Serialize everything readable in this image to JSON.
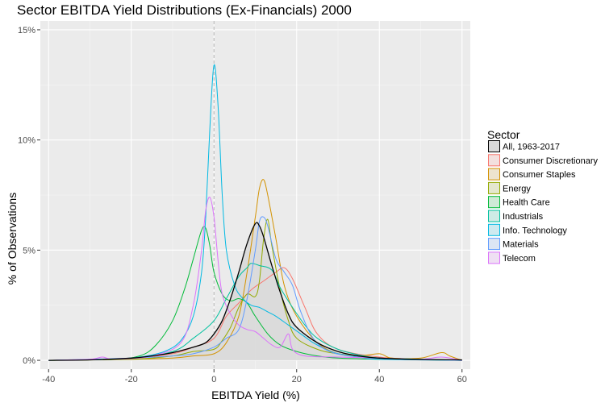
{
  "chart_data": {
    "type": "area",
    "title": "Sector EBITDA Yield Distributions (Ex-Financials) 2000",
    "xlabel": "EBITDA Yield (%)",
    "ylabel": "% of Observations",
    "xlim": [
      -42,
      62
    ],
    "ylim": [
      -0.4,
      15.4
    ],
    "x_ticks": [
      -40,
      -20,
      0,
      20,
      40,
      60
    ],
    "x_tick_labels": [
      "-40",
      "-20",
      "0",
      "20",
      "40",
      "60"
    ],
    "y_ticks": [
      0,
      5,
      10,
      15
    ],
    "y_tick_labels": [
      "0%",
      "5%",
      "10%",
      "15%"
    ],
    "reference_line": {
      "x": 0,
      "style": "dashed"
    },
    "grid": true,
    "panel_background": "#ebebeb",
    "legend": {
      "title": "Sector",
      "position": "right",
      "entries": [
        "All, 1963-2017",
        "Consumer Discretionary",
        "Consumer Staples",
        "Energy",
        "Health Care",
        "Industrials",
        "Info. Technology",
        "Materials",
        "Telecom"
      ]
    },
    "series": [
      {
        "name": "All, 1963-2017",
        "color": "#000000",
        "fill": "#d9d9d9",
        "points": [
          [
            -40,
            0
          ],
          [
            -30,
            0.02
          ],
          [
            -20,
            0.1
          ],
          [
            -15,
            0.2
          ],
          [
            -10,
            0.35
          ],
          [
            -5,
            0.6
          ],
          [
            -2,
            0.8
          ],
          [
            0,
            1.2
          ],
          [
            2,
            1.8
          ],
          [
            4,
            2.8
          ],
          [
            6,
            4.0
          ],
          [
            8,
            5.3
          ],
          [
            10,
            6.2
          ],
          [
            11,
            6.1
          ],
          [
            12,
            5.6
          ],
          [
            14,
            4.3
          ],
          [
            16,
            3.1
          ],
          [
            18,
            2.1
          ],
          [
            20,
            1.5
          ],
          [
            25,
            0.8
          ],
          [
            30,
            0.4
          ],
          [
            35,
            0.2
          ],
          [
            40,
            0.1
          ],
          [
            50,
            0.04
          ],
          [
            60,
            0.02
          ]
        ]
      },
      {
        "name": "Consumer Discretionary",
        "color": "#f8766d",
        "points": [
          [
            -40,
            0
          ],
          [
            -20,
            0.1
          ],
          [
            -10,
            0.3
          ],
          [
            -5,
            0.6
          ],
          [
            0,
            1.0
          ],
          [
            3,
            2.0
          ],
          [
            6,
            2.6
          ],
          [
            9,
            3.2
          ],
          [
            12,
            3.6
          ],
          [
            15,
            4.0
          ],
          [
            17,
            4.2
          ],
          [
            19,
            3.7
          ],
          [
            22,
            2.4
          ],
          [
            25,
            1.2
          ],
          [
            30,
            0.5
          ],
          [
            40,
            0.15
          ],
          [
            50,
            0.05
          ],
          [
            60,
            0
          ]
        ]
      },
      {
        "name": "Consumer Staples",
        "color": "#d39200",
        "points": [
          [
            -40,
            0
          ],
          [
            -20,
            0.05
          ],
          [
            -10,
            0.1
          ],
          [
            -5,
            0.2
          ],
          [
            0,
            0.3
          ],
          [
            3,
            0.8
          ],
          [
            6,
            2.0
          ],
          [
            8,
            4.0
          ],
          [
            10,
            6.5
          ],
          [
            11,
            7.8
          ],
          [
            12,
            8.2
          ],
          [
            13,
            7.5
          ],
          [
            15,
            5.5
          ],
          [
            17,
            3.4
          ],
          [
            20,
            2.0
          ],
          [
            25,
            0.8
          ],
          [
            30,
            0.3
          ],
          [
            35,
            0.2
          ],
          [
            40,
            0.3
          ],
          [
            43,
            0.1
          ],
          [
            50,
            0.1
          ],
          [
            55,
            0.35
          ],
          [
            57,
            0.2
          ],
          [
            60,
            0
          ]
        ]
      },
      {
        "name": "Energy",
        "color": "#93aa00",
        "points": [
          [
            -40,
            0
          ],
          [
            -20,
            0.05
          ],
          [
            -10,
            0.2
          ],
          [
            -5,
            0.4
          ],
          [
            0,
            0.5
          ],
          [
            2,
            0.9
          ],
          [
            4,
            1.5
          ],
          [
            6,
            2.4
          ],
          [
            8,
            3.0
          ],
          [
            10,
            2.9
          ],
          [
            11,
            3.6
          ],
          [
            12,
            5.5
          ],
          [
            13,
            6.4
          ],
          [
            14,
            5.2
          ],
          [
            16,
            3.2
          ],
          [
            18,
            1.8
          ],
          [
            20,
            1.0
          ],
          [
            25,
            0.5
          ],
          [
            30,
            0.3
          ],
          [
            40,
            0.1
          ],
          [
            50,
            0.05
          ],
          [
            60,
            0
          ]
        ]
      },
      {
        "name": "Health Care",
        "color": "#00ba38",
        "points": [
          [
            -40,
            0
          ],
          [
            -25,
            0.05
          ],
          [
            -18,
            0.2
          ],
          [
            -14,
            0.7
          ],
          [
            -10,
            1.8
          ],
          [
            -7,
            3.3
          ],
          [
            -5,
            4.6
          ],
          [
            -3,
            5.9
          ],
          [
            -2,
            6.0
          ],
          [
            -1,
            5.2
          ],
          [
            0,
            4.0
          ],
          [
            2,
            3.0
          ],
          [
            4,
            2.7
          ],
          [
            6,
            2.8
          ],
          [
            8,
            2.6
          ],
          [
            10,
            2.0
          ],
          [
            13,
            1.2
          ],
          [
            16,
            0.7
          ],
          [
            20,
            0.4
          ],
          [
            25,
            0.2
          ],
          [
            30,
            0.1
          ],
          [
            40,
            0.05
          ],
          [
            60,
            0
          ]
        ]
      },
      {
        "name": "Industrials",
        "color": "#00c19f",
        "points": [
          [
            -40,
            0
          ],
          [
            -20,
            0.1
          ],
          [
            -10,
            0.4
          ],
          [
            -5,
            1.0
          ],
          [
            0,
            1.8
          ],
          [
            3,
            2.8
          ],
          [
            6,
            3.8
          ],
          [
            8,
            4.2
          ],
          [
            9,
            4.4
          ],
          [
            11,
            4.3
          ],
          [
            14,
            4.1
          ],
          [
            16,
            3.3
          ],
          [
            19,
            2.4
          ],
          [
            22,
            1.6
          ],
          [
            25,
            1.0
          ],
          [
            30,
            0.5
          ],
          [
            35,
            0.25
          ],
          [
            40,
            0.1
          ],
          [
            50,
            0.05
          ],
          [
            60,
            0
          ]
        ]
      },
      {
        "name": "Info. Technology",
        "color": "#00b9e3",
        "points": [
          [
            -40,
            0
          ],
          [
            -25,
            0.05
          ],
          [
            -18,
            0.15
          ],
          [
            -12,
            0.4
          ],
          [
            -8,
            0.9
          ],
          [
            -5,
            2.0
          ],
          [
            -3,
            4.0
          ],
          [
            -2,
            6.5
          ],
          [
            -1,
            10.5
          ],
          [
            0,
            13.4
          ],
          [
            1,
            11.5
          ],
          [
            2,
            7.5
          ],
          [
            3,
            5.0
          ],
          [
            5,
            3.4
          ],
          [
            7,
            2.8
          ],
          [
            9,
            2.5
          ],
          [
            11,
            2.4
          ],
          [
            13,
            2.2
          ],
          [
            15,
            2.0
          ],
          [
            18,
            1.6
          ],
          [
            21,
            1.2
          ],
          [
            24,
            0.8
          ],
          [
            27,
            0.5
          ],
          [
            30,
            0.3
          ],
          [
            35,
            0.15
          ],
          [
            40,
            0.05
          ],
          [
            60,
            0
          ]
        ]
      },
      {
        "name": "Materials",
        "color": "#619cff",
        "points": [
          [
            -40,
            0
          ],
          [
            -20,
            0.1
          ],
          [
            -10,
            0.2
          ],
          [
            -5,
            0.3
          ],
          [
            0,
            0.6
          ],
          [
            3,
            1.0
          ],
          [
            6,
            1.4
          ],
          [
            8,
            2.8
          ],
          [
            10,
            5.0
          ],
          [
            11,
            6.3
          ],
          [
            12,
            6.5
          ],
          [
            13,
            6.1
          ],
          [
            15,
            4.6
          ],
          [
            17,
            4.0
          ],
          [
            19,
            3.4
          ],
          [
            21,
            2.2
          ],
          [
            24,
            1.0
          ],
          [
            28,
            0.4
          ],
          [
            35,
            0.15
          ],
          [
            45,
            0.05
          ],
          [
            60,
            0
          ]
        ]
      },
      {
        "name": "Telecom",
        "color": "#db72fb",
        "points": [
          [
            -40,
            0
          ],
          [
            -30,
            0.05
          ],
          [
            -27,
            0.15
          ],
          [
            -24,
            0.05
          ],
          [
            -15,
            0.2
          ],
          [
            -8,
            0.8
          ],
          [
            -5,
            2.5
          ],
          [
            -3,
            5.0
          ],
          [
            -2,
            6.8
          ],
          [
            -1,
            7.4
          ],
          [
            0,
            6.5
          ],
          [
            1,
            4.5
          ],
          [
            2,
            3.0
          ],
          [
            4,
            2.1
          ],
          [
            6,
            1.6
          ],
          [
            8,
            1.4
          ],
          [
            10,
            1.3
          ],
          [
            12,
            1.0
          ],
          [
            14,
            0.7
          ],
          [
            16,
            0.6
          ],
          [
            18,
            1.2
          ],
          [
            19,
            0.5
          ],
          [
            22,
            0.2
          ],
          [
            30,
            0.15
          ],
          [
            40,
            0.1
          ],
          [
            50,
            0.05
          ],
          [
            55,
            0.15
          ],
          [
            60,
            0
          ]
        ]
      }
    ]
  }
}
